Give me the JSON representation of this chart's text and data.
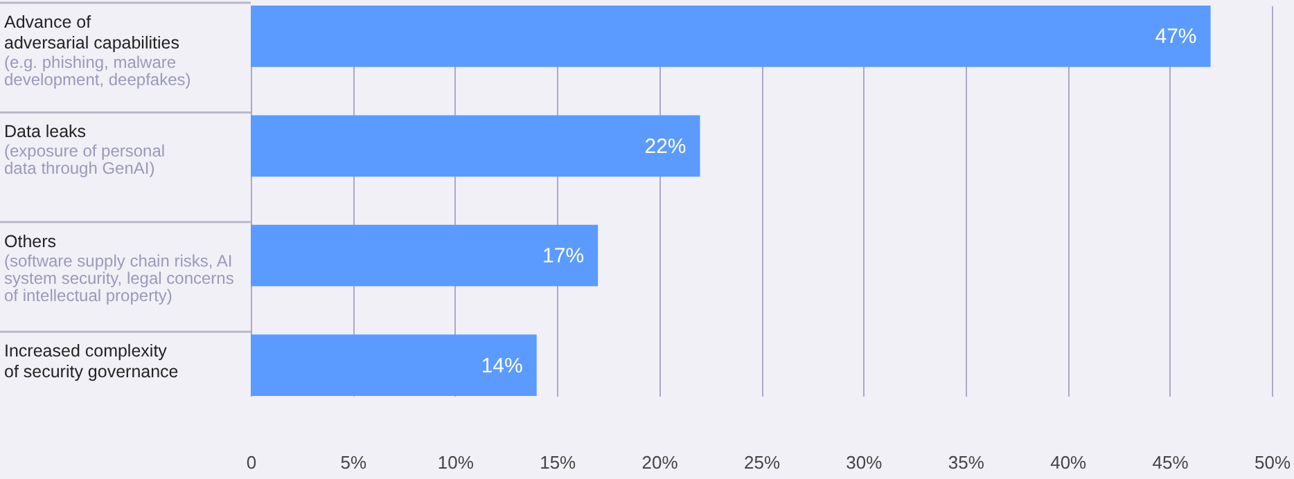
{
  "chart_data": {
    "type": "bar",
    "orientation": "horizontal",
    "categories": [
      "Advance of\nadversarial capabilities",
      "Data leaks",
      "Others",
      "Increased complexity\nof security governance"
    ],
    "values": [
      47,
      22,
      17,
      14
    ],
    "value_labels": [
      "47%",
      "22%",
      "17%",
      "14%"
    ],
    "color": "#5b9bff",
    "annotations": [
      "(e.g. phishing, malware\ndevelopment, deepfakes)",
      "(exposure of personal\ndata through GenAI)",
      "(software supply chain risks, AI\nsystem security, legal concerns\nof intellectual property)",
      null
    ],
    "xlim": [
      0,
      50
    ],
    "xticks": [
      {
        "value": 0,
        "label": "0"
      },
      {
        "value": 5,
        "label": "5%"
      },
      {
        "value": 10,
        "label": "10%"
      },
      {
        "value": 15,
        "label": "15%"
      },
      {
        "value": 20,
        "label": "20%"
      },
      {
        "value": 25,
        "label": "25%"
      },
      {
        "value": 30,
        "label": "30%"
      },
      {
        "value": 35,
        "label": "35%"
      },
      {
        "value": 40,
        "label": "40%"
      },
      {
        "value": 45,
        "label": "45%"
      },
      {
        "value": 50,
        "label": "50%"
      }
    ],
    "grid": "x"
  }
}
